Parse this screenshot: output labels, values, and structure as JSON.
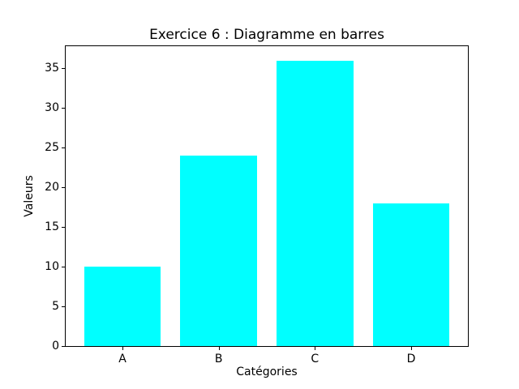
{
  "chart_data": {
    "type": "bar",
    "title": "Exercice 6 : Diagramme en barres",
    "xlabel": "Catégories",
    "ylabel": "Valeurs",
    "categories": [
      "A",
      "B",
      "C",
      "D"
    ],
    "values": [
      10,
      24,
      36,
      18
    ],
    "yticks": [
      0,
      5,
      10,
      15,
      20,
      25,
      30,
      35
    ],
    "ylim": [
      0,
      37.8
    ],
    "bar_color": "#00FFFF",
    "bar_width_ratio": 0.8,
    "axis_color": "#000000",
    "background_color": "#FFFFFF",
    "grid": false,
    "legend": "none"
  }
}
